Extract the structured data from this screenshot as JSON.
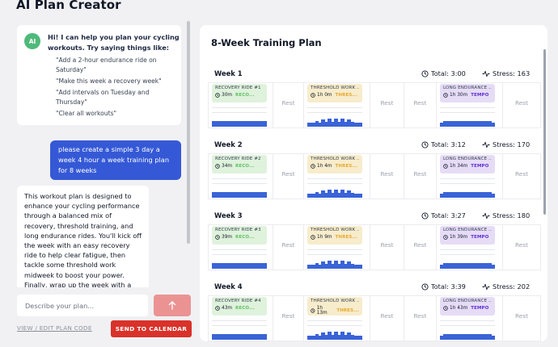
{
  "app": {
    "title": "AI Plan Creator"
  },
  "chat": {
    "ai_avatar": "AI",
    "ai_intro": "Hi! I can help you plan your cycling workouts. Try saying things like:",
    "suggestions": [
      "\"Add a 2-hour endurance ride on Saturday\"",
      "\"Make this week a recovery week\"",
      "\"Add intervals on Tuesday and Thursday\"",
      "\"Clear all workouts\""
    ],
    "user_message": "please create a simple 3 day a week 4 hour a week training plan for 8 weeks",
    "ai_reply": "This workout plan is designed to enhance your cycling performance through a balanced mix of recovery, threshold training, and long endurance rides. You'll kick off the week with an easy recovery ride to help clear fatigue, then tackle some threshold work midweek to boost your power. Finally, wrap up the week with a long endurance"
  },
  "input": {
    "placeholder": "Describe your plan..."
  },
  "actions": {
    "edit_link": "VIEW / EDIT PLAN CODE",
    "send_calendar": "SEND TO CALENDAR"
  },
  "colors": {
    "primary": "#3559d6",
    "danger": "#d9322a",
    "recovery": "#5fbf63",
    "threshold": "#e6a62b",
    "tempo": "#5b2bd3"
  },
  "plan": {
    "title": "8-Week Training Plan",
    "rest_label": "Rest",
    "weeks": [
      {
        "name": "Week 1",
        "total": "Total: 3:00",
        "stress": "Stress: 163",
        "recovery": {
          "name": "RECOVERY RIDE #1",
          "dur": "30m",
          "type": "RECO..."
        },
        "threshold": {
          "name": "THRESHOLD WORK ...",
          "dur": "1h 0m",
          "type": "THRES..."
        },
        "endurance": {
          "name": "LONG ENDURANCE ...",
          "dur": "1h 30m",
          "type": "TEMPO"
        }
      },
      {
        "name": "Week 2",
        "total": "Total: 3:12",
        "stress": "Stress: 170",
        "recovery": {
          "name": "RECOVERY RIDE #2",
          "dur": "34m",
          "type": "RECO..."
        },
        "threshold": {
          "name": "THRESHOLD WORK ...",
          "dur": "1h 4m",
          "type": "THRES..."
        },
        "endurance": {
          "name": "LONG ENDURANCE ...",
          "dur": "1h 34m",
          "type": "TEMPO"
        }
      },
      {
        "name": "Week 3",
        "total": "Total: 3:27",
        "stress": "Stress: 180",
        "recovery": {
          "name": "RECOVERY RIDE #3",
          "dur": "39m",
          "type": "RECO..."
        },
        "threshold": {
          "name": "THRESHOLD WORK ...",
          "dur": "1h 9m",
          "type": "THRES..."
        },
        "endurance": {
          "name": "LONG ENDURANCE ...",
          "dur": "1h 39m",
          "type": "TEMPO"
        }
      },
      {
        "name": "Week 4",
        "total": "Total: 3:39",
        "stress": "Stress: 202",
        "recovery": {
          "name": "RECOVERY RIDE #4",
          "dur": "43m",
          "type": "RECO..."
        },
        "threshold": {
          "name": "THRESHOLD WORK ...",
          "dur": "1h 13m",
          "type": "THRES..."
        },
        "endurance": {
          "name": "LONG ENDURANCE ...",
          "dur": "1h 43m",
          "type": "TEMPO"
        }
      }
    ]
  }
}
